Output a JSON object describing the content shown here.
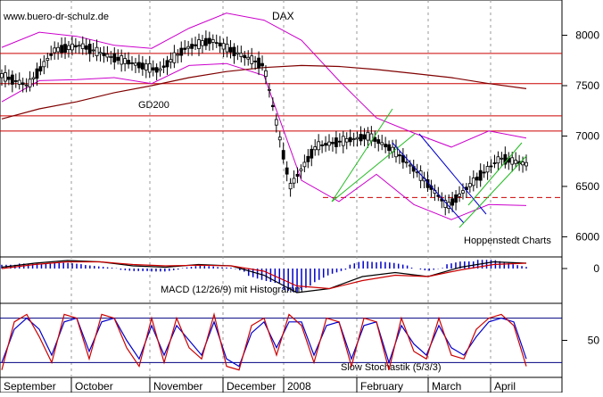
{
  "chart_data": [
    {
      "type": "candlestick",
      "title": "DAX",
      "watermark": "www.buero-dr-schulz.de",
      "source_label": "Hoppenstedt Charts",
      "y_ticks": [
        8000,
        7500,
        7000,
        6500,
        6000
      ],
      "ylim": [
        5800,
        8350
      ],
      "x_months": [
        "September",
        "October",
        "November",
        "December",
        "2008",
        "February",
        "March",
        "April"
      ],
      "horizontal_resistance_levels": [
        7820,
        7520,
        7200,
        7050
      ],
      "dashed_support_level": 6390,
      "moving_average": {
        "name": "GD200",
        "values": [
          7170,
          7270,
          7340,
          7430,
          7500,
          7580,
          7640,
          7680,
          7700,
          7690,
          7660,
          7620,
          7580,
          7520,
          7470
        ]
      },
      "bollinger_upper": [
        7880,
        8030,
        7990,
        7900,
        7870,
        8070,
        8220,
        8150,
        7950,
        7550,
        7180,
        7030,
        6890,
        7050,
        6980
      ],
      "bollinger_lower": [
        7340,
        7550,
        7560,
        7580,
        7520,
        7700,
        7720,
        7600,
        6560,
        6350,
        6620,
        6320,
        6170,
        6320,
        6310
      ],
      "close_series": [
        7600,
        7500,
        7850,
        7900,
        7800,
        7720,
        7650,
        7870,
        7950,
        7820,
        7700,
        6500,
        6900,
        6950,
        7000,
        6850,
        6600,
        6300,
        6550,
        6780,
        6720
      ],
      "colors": {
        "candles": "#000000",
        "resistance": "#cc0000",
        "gd200": "#800000",
        "bollinger": "#cc00cc",
        "up_channel": "#22bb22",
        "down_channel": "#0000cc"
      }
    },
    {
      "type": "macd",
      "label": "MACD (12/26/9) mit Histogramm",
      "y_ticks": [
        0
      ],
      "macd": [
        10,
        40,
        60,
        50,
        20,
        10,
        30,
        20,
        -50,
        -180,
        -150,
        -60,
        -30,
        -60,
        10,
        50,
        40
      ],
      "signal": [
        0,
        30,
        50,
        50,
        30,
        20,
        25,
        20,
        -20,
        -130,
        -150,
        -90,
        -50,
        -60,
        -10,
        30,
        40
      ],
      "colors": {
        "histogram": "#0000cc",
        "macd": "#000000",
        "signal": "#cc0000"
      }
    },
    {
      "type": "stochastic",
      "label": "Slow Stochastik (5/3/3)",
      "y_ticks": [
        50
      ],
      "upper_band": 80,
      "lower_band": 20,
      "percent_k": [
        10,
        75,
        85,
        55,
        20,
        85,
        80,
        25,
        85,
        80,
        40,
        15,
        80,
        20,
        80,
        40,
        25,
        85,
        15,
        10,
        70,
        80,
        30,
        85,
        70,
        20,
        80,
        75,
        15,
        80,
        75,
        10,
        80,
        35,
        25,
        80,
        30,
        25,
        65,
        80,
        85,
        70,
        15
      ],
      "percent_d": [
        20,
        65,
        80,
        65,
        30,
        75,
        80,
        35,
        75,
        80,
        50,
        25,
        70,
        30,
        70,
        50,
        30,
        75,
        25,
        15,
        60,
        75,
        40,
        75,
        75,
        30,
        70,
        75,
        25,
        70,
        75,
        20,
        70,
        45,
        30,
        70,
        40,
        30,
        55,
        75,
        80,
        75,
        25
      ],
      "colors": {
        "k": "#cc0000",
        "d": "#0000cc",
        "bands": "#000080"
      }
    }
  ]
}
